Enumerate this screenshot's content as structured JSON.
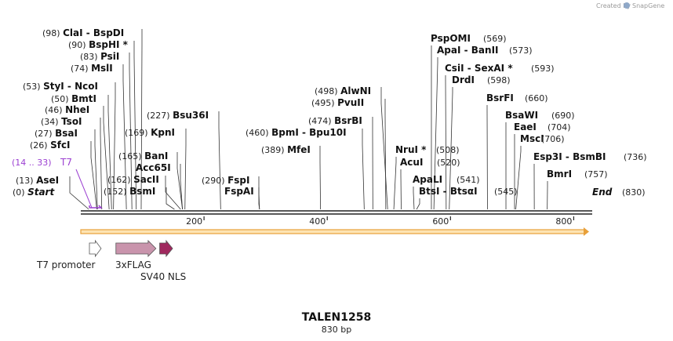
{
  "credit": "Created by",
  "brand": "SnapGene",
  "title": "TALEN1258",
  "subtitle": "830 bp",
  "sequence_length": 830,
  "ticks": [
    {
      "value": 200,
      "label": "200"
    },
    {
      "value": 400,
      "label": "400"
    },
    {
      "value": 600,
      "label": "600"
    },
    {
      "value": 800,
      "label": "800"
    }
  ],
  "sites": [
    {
      "id": "clai",
      "pos": "(98)",
      "name": "ClaI",
      "suffix": " - BspDI",
      "bp": 98,
      "suffix_pos": ""
    },
    {
      "id": "bsphi",
      "pos": "(90)",
      "name": "BspHI *",
      "suffix": "",
      "bp": 90,
      "suffix_pos": ""
    },
    {
      "id": "psii",
      "pos": "(83)",
      "name": "PsiI",
      "suffix": "",
      "bp": 83,
      "suffix_pos": ""
    },
    {
      "id": "msli",
      "pos": "(74)",
      "name": "MslI",
      "suffix": "",
      "bp": 74,
      "suffix_pos": ""
    },
    {
      "id": "styi",
      "pos": "(53)",
      "name": "StyI",
      "suffix": " - NcoI",
      "bp": 53,
      "suffix_pos": ""
    },
    {
      "id": "bmti",
      "pos": "(50)",
      "name": "BmtI",
      "suffix": "",
      "bp": 50,
      "suffix_pos": ""
    },
    {
      "id": "nhei",
      "pos": "(46)",
      "name": "NheI",
      "suffix": "",
      "bp": 46,
      "suffix_pos": ""
    },
    {
      "id": "tsoi",
      "pos": "(34)",
      "name": "TsoI",
      "suffix": "",
      "bp": 34,
      "suffix_pos": ""
    },
    {
      "id": "bsai",
      "pos": "(27)",
      "name": "BsaI",
      "suffix": "",
      "bp": 27,
      "suffix_pos": ""
    },
    {
      "id": "sfci",
      "pos": "(26)",
      "name": "SfcI",
      "suffix": "",
      "bp": 26,
      "suffix_pos": ""
    },
    {
      "id": "asei",
      "pos": "(13)",
      "name": "AseI",
      "suffix": "",
      "bp": 13,
      "suffix_pos": ""
    },
    {
      "id": "start",
      "pos": "(0)",
      "name": "Start",
      "suffix": "",
      "bp": 0,
      "suffix_pos": ""
    },
    {
      "id": "kpni",
      "pos": "(169)",
      "name": "KpnI",
      "suffix": "",
      "bp": 169,
      "suffix_pos": ""
    },
    {
      "id": "bani",
      "pos": "(165)",
      "name": "BanI",
      "suffix": "",
      "bp": 165,
      "suffix_pos": ""
    },
    {
      "id": "acc65i",
      "pos": "",
      "name": "Acc65I",
      "suffix": "",
      "bp": 165,
      "suffix_pos": ""
    },
    {
      "id": "sacii",
      "pos": "(162)",
      "name": "SacII",
      "suffix": "",
      "bp": 162,
      "suffix_pos": ""
    },
    {
      "id": "bsmi",
      "pos": "(152)",
      "name": "BsmI",
      "suffix": "",
      "bp": 152,
      "suffix_pos": ""
    },
    {
      "id": "bsu36i",
      "pos": "(227)",
      "name": "Bsu36I",
      "suffix": "",
      "bp": 227,
      "suffix_pos": ""
    },
    {
      "id": "fspi",
      "pos": "(290)",
      "name": "FspI",
      "suffix": "",
      "bp": 290,
      "suffix_pos": ""
    },
    {
      "id": "fspai",
      "pos": "",
      "name": "FspAI",
      "suffix": "",
      "bp": 290,
      "suffix_pos": ""
    },
    {
      "id": "bpmi",
      "pos": "(460)",
      "name": "BpmI",
      "suffix": " - Bpu10I",
      "bp": 460,
      "suffix_pos": ""
    },
    {
      "id": "mfei",
      "pos": "(389)",
      "name": "MfeI",
      "suffix": "",
      "bp": 389,
      "suffix_pos": ""
    },
    {
      "id": "alwni",
      "pos": "(498)",
      "name": "AlwNI",
      "suffix": "",
      "bp": 498,
      "suffix_pos": ""
    },
    {
      "id": "pvuii",
      "pos": "(495)",
      "name": "PvuII",
      "suffix": "",
      "bp": 495,
      "suffix_pos": ""
    },
    {
      "id": "bsrbi",
      "pos": "(474)",
      "name": "BsrBI",
      "suffix": "",
      "bp": 474,
      "suffix_pos": ""
    },
    {
      "id": "nrui",
      "pos": "",
      "name": "NruI *",
      "suffix": "",
      "bp": 508,
      "suffix_pos": "(508)"
    },
    {
      "id": "acui",
      "pos": "",
      "name": "AcuI",
      "suffix": "",
      "bp": 520,
      "suffix_pos": "(520)"
    },
    {
      "id": "apali",
      "pos": "",
      "name": "ApaLI",
      "suffix": "",
      "bp": 541,
      "suffix_pos": "(541)"
    },
    {
      "id": "btsi",
      "pos": "",
      "name": "BtsI",
      "suffix": " - BtsαI",
      "bp": 545,
      "suffix_pos": "(545)"
    },
    {
      "id": "pspomi",
      "pos": "",
      "name": "PspOMI",
      "suffix": "",
      "bp": 569,
      "suffix_pos": "(569)"
    },
    {
      "id": "apai",
      "pos": "",
      "name": "ApaI",
      "suffix": " - BanII",
      "bp": 573,
      "suffix_pos": "(573)"
    },
    {
      "id": "csii",
      "pos": "",
      "name": "CsiI",
      "suffix": " - SexAI *",
      "bp": 593,
      "suffix_pos": "(593)"
    },
    {
      "id": "drdi",
      "pos": "",
      "name": "DrdI",
      "suffix": "",
      "bp": 598,
      "suffix_pos": "(598)"
    },
    {
      "id": "bsrfi",
      "pos": "",
      "name": "BsrFI",
      "suffix": "",
      "bp": 660,
      "suffix_pos": "(660)"
    },
    {
      "id": "bsawi",
      "pos": "",
      "name": "BsaWI",
      "suffix": "",
      "bp": 690,
      "suffix_pos": "(690)"
    },
    {
      "id": "eaei",
      "pos": "",
      "name": "EaeI",
      "suffix": "",
      "bp": 704,
      "suffix_pos": "(704)"
    },
    {
      "id": "msci",
      "pos": "",
      "name": "MscI",
      "suffix": "",
      "bp": 706,
      "suffix_pos": "(706)"
    },
    {
      "id": "esp3i",
      "pos": "",
      "name": "Esp3I",
      "suffix": " - BsmBI",
      "bp": 736,
      "suffix_pos": "(736)"
    },
    {
      "id": "bmri",
      "pos": "",
      "name": "BmrI",
      "suffix": "",
      "bp": 757,
      "suffix_pos": "(757)"
    },
    {
      "id": "end",
      "pos": "",
      "name": "End",
      "suffix": "",
      "bp": 830,
      "suffix_pos": "(830)"
    }
  ],
  "primer": {
    "pos": "(14 .. 33)",
    "name": "T7",
    "start_bp": 14,
    "end_bp": 33
  },
  "features": [
    {
      "id": "t7-promoter",
      "name": "T7 promoter",
      "start_bp": 14,
      "end_bp": 33,
      "color": "#ffffff"
    },
    {
      "id": "3xflag",
      "name": "3xFLAG",
      "start_bp": 57,
      "end_bp": 122,
      "color": "#c994ac"
    },
    {
      "id": "sv40-nls",
      "name": "SV40 NLS",
      "start_bp": 128,
      "end_bp": 149,
      "color": "#a0285e"
    }
  ],
  "colors": {
    "backbone": "#222222",
    "orf_fill": "#fde4b3",
    "orf_stroke": "#e8a03a",
    "primer": "#9b3fd1",
    "snapgene_icon": "#8fa8c8"
  }
}
